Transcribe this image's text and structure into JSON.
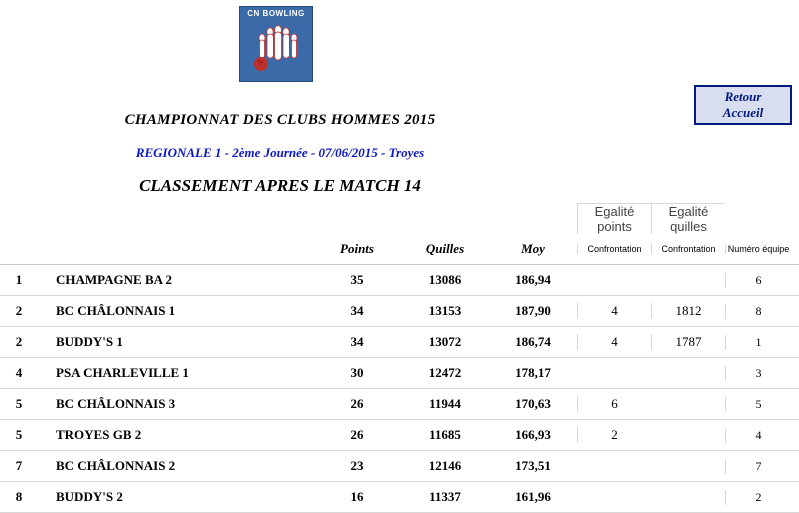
{
  "logo": {
    "label": "CN BOWLING"
  },
  "return_button": {
    "line1": "Retour",
    "line2": "Accueil"
  },
  "titles": {
    "main": "CHAMPIONNAT DES CLUBS HOMMES 2015",
    "sub": "REGIONALE 1 - 2ème Journée - 07/06/2015 - Troyes",
    "classement": "CLASSEMENT APRES LE MATCH 14"
  },
  "headers": {
    "points": "Points",
    "quilles": "Quilles",
    "moy": "Moy",
    "eg_pts_top": "Egalité points",
    "eg_quil_top": "Egalité quilles",
    "confrontation": "Confrontation",
    "numero": "Numéro équipe"
  },
  "rows": [
    {
      "rank": "1",
      "team": "CHAMPAGNE BA 2",
      "pts": "35",
      "quilles": "13086",
      "moy": "186,94",
      "ep": "",
      "eq": "",
      "num": "6"
    },
    {
      "rank": "2",
      "team": "BC CHÂLONNAIS 1",
      "pts": "34",
      "quilles": "13153",
      "moy": "187,90",
      "ep": "4",
      "eq": "1812",
      "num": "8"
    },
    {
      "rank": "2",
      "team": "BUDDY'S 1",
      "pts": "34",
      "quilles": "13072",
      "moy": "186,74",
      "ep": "4",
      "eq": "1787",
      "num": "1"
    },
    {
      "rank": "4",
      "team": "PSA CHARLEVILLE 1",
      "pts": "30",
      "quilles": "12472",
      "moy": "178,17",
      "ep": "",
      "eq": "",
      "num": "3"
    },
    {
      "rank": "5",
      "team": "BC CHÂLONNAIS 3",
      "pts": "26",
      "quilles": "11944",
      "moy": "170,63",
      "ep": "6",
      "eq": "",
      "num": "5"
    },
    {
      "rank": "5",
      "team": "TROYES GB 2",
      "pts": "26",
      "quilles": "11685",
      "moy": "166,93",
      "ep": "2",
      "eq": "",
      "num": "4"
    },
    {
      "rank": "7",
      "team": "BC CHÂLONNAIS 2",
      "pts": "23",
      "quilles": "12146",
      "moy": "173,51",
      "ep": "",
      "eq": "",
      "num": "7"
    },
    {
      "rank": "8",
      "team": "BUDDY'S 2",
      "pts": "16",
      "quilles": "11337",
      "moy": "161,96",
      "ep": "",
      "eq": "",
      "num": "2"
    }
  ],
  "colors": {
    "accent_blue": "#001a80",
    "link_blue": "#0a18c8",
    "logo_bg": "#3a6aa8",
    "grid": "#d8d8d8",
    "btn_bg": "#d8def0"
  }
}
